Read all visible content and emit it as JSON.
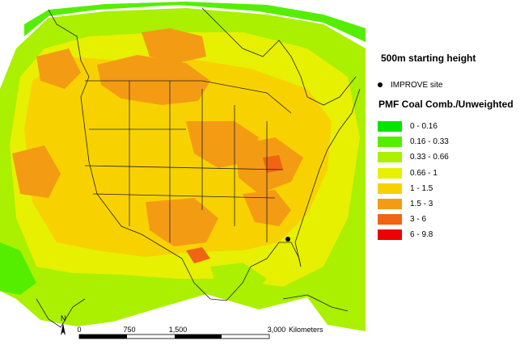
{
  "legend": {
    "title": "500m starting height",
    "site_label": "IMPROVE site",
    "heading": "PMF Coal Comb./Unweighted",
    "classes": [
      {
        "label": "0 - 0.16",
        "color": "#00e600"
      },
      {
        "label": "0.16 - 0.33",
        "color": "#55ee00"
      },
      {
        "label": "0.33 - 0.66",
        "color": "#aaf000"
      },
      {
        "label": "0.66 - 1",
        "color": "#e6f000"
      },
      {
        "label": "1 - 1.5",
        "color": "#f8d200"
      },
      {
        "label": "1.5 - 3",
        "color": "#f49b14"
      },
      {
        "label": "3 - 6",
        "color": "#f06414"
      },
      {
        "label": "6 - 9.8",
        "color": "#ee0000"
      }
    ]
  },
  "scale_bar": {
    "ticks": [
      "0",
      "750",
      "1,500",
      "3,000"
    ],
    "unit": "Kilometers"
  },
  "north_arrow": "N"
}
